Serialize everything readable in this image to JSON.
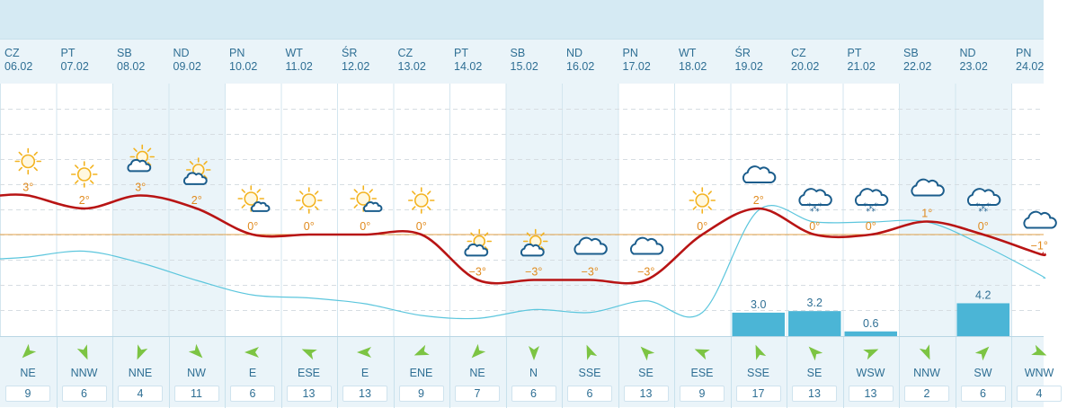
{
  "chart_data": {
    "type": "line",
    "days": [
      {
        "name": "CZ",
        "date": "06.02",
        "temp": "3°",
        "icon": "sun-icon",
        "wind_dir": "NE",
        "wind_speed": "9",
        "weekend": false
      },
      {
        "name": "PT",
        "date": "07.02",
        "temp": "2°",
        "icon": "sun-icon",
        "wind_dir": "NNW",
        "wind_speed": "6",
        "weekend": false
      },
      {
        "name": "SB",
        "date": "08.02",
        "temp": "3°",
        "icon": "partly-cloudy-icon",
        "wind_dir": "NNE",
        "wind_speed": "4",
        "weekend": true
      },
      {
        "name": "ND",
        "date": "09.02",
        "temp": "2°",
        "icon": "partly-cloudy-icon",
        "wind_dir": "NW",
        "wind_speed": "11",
        "weekend": true
      },
      {
        "name": "PN",
        "date": "10.02",
        "temp": "0°",
        "icon": "sun-cloud-icon",
        "wind_dir": "E",
        "wind_speed": "6",
        "weekend": false
      },
      {
        "name": "WT",
        "date": "11.02",
        "temp": "0°",
        "icon": "sun-icon",
        "wind_dir": "ESE",
        "wind_speed": "13",
        "weekend": false
      },
      {
        "name": "ŚR",
        "date": "12.02",
        "temp": "0°",
        "icon": "sun-cloud-icon",
        "wind_dir": "E",
        "wind_speed": "13",
        "weekend": false
      },
      {
        "name": "CZ",
        "date": "13.02",
        "temp": "0°",
        "icon": "sun-icon",
        "wind_dir": "ENE",
        "wind_speed": "9",
        "weekend": false
      },
      {
        "name": "PT",
        "date": "14.02",
        "temp": "−3°",
        "icon": "partly-cloudy-icon",
        "wind_dir": "NE",
        "wind_speed": "7",
        "weekend": false
      },
      {
        "name": "SB",
        "date": "15.02",
        "temp": "−3°",
        "icon": "partly-cloudy-icon",
        "wind_dir": "N",
        "wind_speed": "6",
        "weekend": true
      },
      {
        "name": "ND",
        "date": "16.02",
        "temp": "−3°",
        "icon": "cloud-icon",
        "wind_dir": "SSE",
        "wind_speed": "6",
        "weekend": true
      },
      {
        "name": "PN",
        "date": "17.02",
        "temp": "−3°",
        "icon": "cloud-icon",
        "wind_dir": "SE",
        "wind_speed": "13",
        "weekend": false
      },
      {
        "name": "WT",
        "date": "18.02",
        "temp": "0°",
        "icon": "sun-icon",
        "wind_dir": "ESE",
        "wind_speed": "9",
        "weekend": false
      },
      {
        "name": "ŚR",
        "date": "19.02",
        "temp": "2°",
        "icon": "cloud-icon",
        "wind_dir": "SSE",
        "wind_speed": "17",
        "weekend": false
      },
      {
        "name": "CZ",
        "date": "20.02",
        "temp": "0°",
        "icon": "snow-cloud-icon",
        "wind_dir": "SE",
        "wind_speed": "13",
        "weekend": false
      },
      {
        "name": "PT",
        "date": "21.02",
        "temp": "0°",
        "icon": "snow-cloud-icon",
        "wind_dir": "WSW",
        "wind_speed": "13",
        "weekend": false
      },
      {
        "name": "SB",
        "date": "22.02",
        "temp": "1°",
        "icon": "cloud-icon",
        "wind_dir": "NNW",
        "wind_speed": "2",
        "weekend": true
      },
      {
        "name": "ND",
        "date": "23.02",
        "temp": "0°",
        "icon": "snow-cloud-icon",
        "wind_dir": "SW",
        "wind_speed": "6",
        "weekend": true
      },
      {
        "name": "PN",
        "date": "24.02",
        "temp": "−1°",
        "icon": "cloud-icon",
        "wind_dir": "WNW",
        "wind_speed": "4",
        "weekend": false
      }
    ],
    "temperature_series": [
      3,
      2,
      3,
      2,
      0,
      0,
      0,
      0,
      -3,
      -3,
      -3,
      -3,
      0,
      2,
      0,
      0,
      1,
      0,
      -1
    ],
    "secondary_series": [
      1.0,
      1.1,
      0.9,
      0.6,
      0.35,
      0.3,
      0.2,
      0.0,
      -0.05,
      0.1,
      0.05,
      0.25,
      0.05,
      1.8,
      1.6,
      1.6,
      1.6,
      1.2,
      0.7
    ],
    "precipitation": [
      null,
      null,
      null,
      null,
      null,
      null,
      null,
      null,
      null,
      null,
      null,
      null,
      null,
      3.0,
      3.2,
      0.6,
      null,
      4.2,
      null
    ],
    "precipitation_labels": [
      "",
      "",
      "",
      "",
      "",
      "",
      "",
      "",
      "",
      "",
      "",
      "",
      "",
      "3.0",
      "3.2",
      "0.6",
      "",
      "4.2",
      ""
    ],
    "zero_line": 0,
    "colors": {
      "temperature": "#b81414",
      "secondary": "#5cc6dd",
      "precipitation": "#4bb5d6",
      "zero_line": "#e3a24a",
      "sun": "#f3b320",
      "cloud": "#1b5d8c",
      "weekend": "#eaf4f9",
      "text": "#2f6f94",
      "arrow": "#7cc443",
      "temp_label": "#e08a1e"
    }
  }
}
